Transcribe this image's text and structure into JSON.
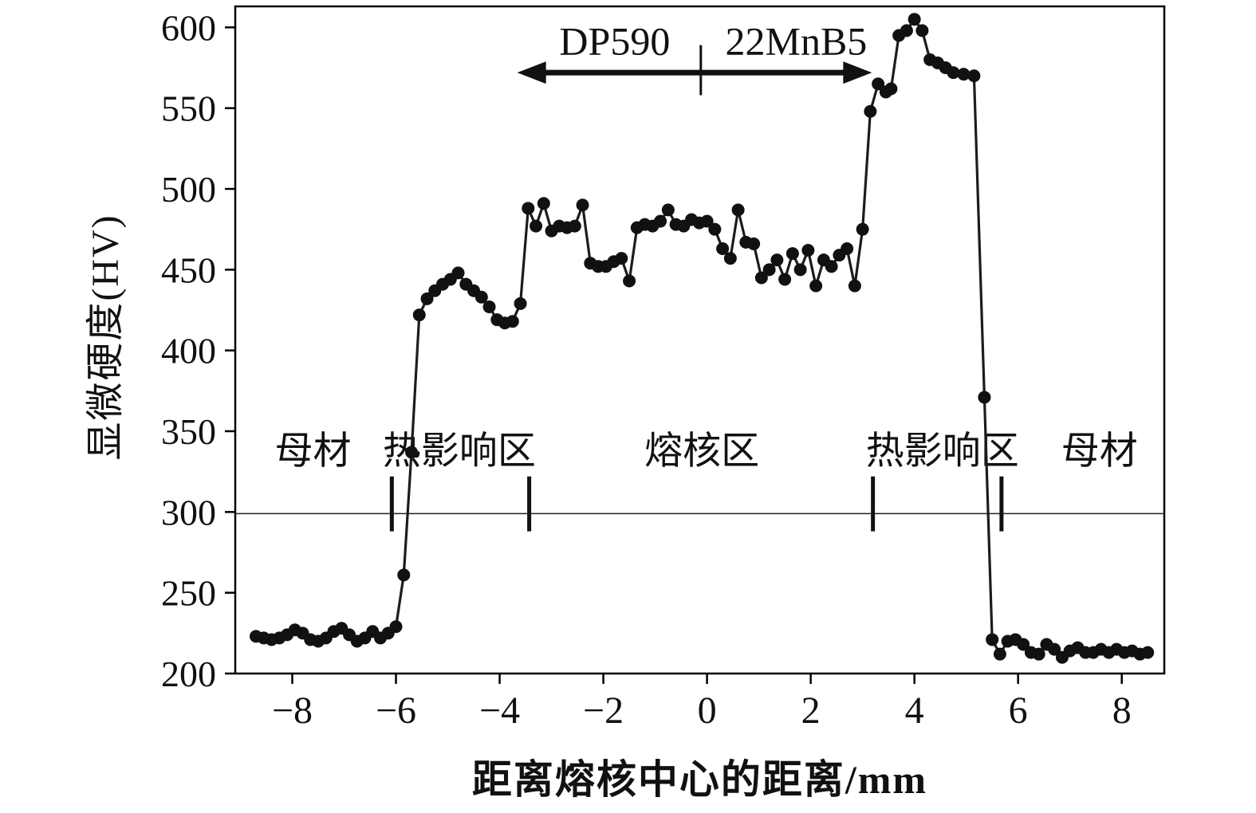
{
  "chart_data": {
    "type": "line",
    "title": "",
    "xlabel": "距离熔核中心的距离/mm",
    "ylabel": "显微硬度(HV)",
    "xlim": [
      -9.1,
      8.82
    ],
    "ylim": [
      200,
      613
    ],
    "xticks": [
      -8,
      -6,
      -4,
      -2,
      0,
      2,
      4,
      6,
      8
    ],
    "xtick_labels": [
      "−8",
      "−6",
      "−4",
      "−2",
      "0",
      "2",
      "4",
      "6",
      "8"
    ],
    "yticks": [
      200,
      250,
      300,
      350,
      400,
      450,
      500,
      550,
      600
    ],
    "ytick_labels": [
      "200",
      "250",
      "300",
      "350",
      "400",
      "450",
      "500",
      "550",
      "600"
    ],
    "grid": false,
    "legend": "none",
    "colors": {
      "line": "#1c1c1c",
      "marker": "#111111",
      "axis": "#000000"
    },
    "series": [
      {
        "name": "microhardness-profile",
        "points": [
          [
            -8.7,
            223
          ],
          [
            -8.55,
            222
          ],
          [
            -8.4,
            221
          ],
          [
            -8.25,
            222
          ],
          [
            -8.1,
            224
          ],
          [
            -7.95,
            227
          ],
          [
            -7.8,
            225
          ],
          [
            -7.65,
            221
          ],
          [
            -7.5,
            220
          ],
          [
            -7.35,
            222
          ],
          [
            -7.2,
            226
          ],
          [
            -7.05,
            228
          ],
          [
            -6.9,
            224
          ],
          [
            -6.75,
            220
          ],
          [
            -6.6,
            222
          ],
          [
            -6.45,
            226
          ],
          [
            -6.3,
            222
          ],
          [
            -6.15,
            225
          ],
          [
            -6.0,
            229
          ],
          [
            -5.85,
            261
          ],
          [
            -5.7,
            337
          ],
          [
            -5.55,
            422
          ],
          [
            -5.4,
            432
          ],
          [
            -5.25,
            437
          ],
          [
            -5.1,
            441
          ],
          [
            -4.95,
            444
          ],
          [
            -4.8,
            448
          ],
          [
            -4.65,
            441
          ],
          [
            -4.5,
            437
          ],
          [
            -4.35,
            433
          ],
          [
            -4.2,
            427
          ],
          [
            -4.05,
            419
          ],
          [
            -3.9,
            417
          ],
          [
            -3.75,
            418
          ],
          [
            -3.6,
            429
          ],
          [
            -3.45,
            488
          ],
          [
            -3.3,
            477
          ],
          [
            -3.15,
            491
          ],
          [
            -3.0,
            474
          ],
          [
            -2.85,
            477
          ],
          [
            -2.7,
            476
          ],
          [
            -2.55,
            477
          ],
          [
            -2.4,
            490
          ],
          [
            -2.25,
            454
          ],
          [
            -2.1,
            452
          ],
          [
            -1.95,
            452
          ],
          [
            -1.8,
            455
          ],
          [
            -1.65,
            457
          ],
          [
            -1.5,
            443
          ],
          [
            -1.35,
            476
          ],
          [
            -1.2,
            478
          ],
          [
            -1.05,
            477
          ],
          [
            -0.9,
            480
          ],
          [
            -0.75,
            487
          ],
          [
            -0.6,
            478
          ],
          [
            -0.45,
            477
          ],
          [
            -0.3,
            481
          ],
          [
            -0.15,
            479
          ],
          [
            0.0,
            480
          ],
          [
            0.15,
            475
          ],
          [
            0.3,
            463
          ],
          [
            0.45,
            457
          ],
          [
            0.6,
            487
          ],
          [
            0.75,
            467
          ],
          [
            0.9,
            466
          ],
          [
            1.05,
            445
          ],
          [
            1.2,
            450
          ],
          [
            1.35,
            456
          ],
          [
            1.5,
            444
          ],
          [
            1.65,
            460
          ],
          [
            1.8,
            450
          ],
          [
            1.95,
            462
          ],
          [
            2.1,
            440
          ],
          [
            2.25,
            456
          ],
          [
            2.4,
            452
          ],
          [
            2.55,
            459
          ],
          [
            2.7,
            463
          ],
          [
            2.85,
            440
          ],
          [
            3.0,
            475
          ],
          [
            3.15,
            548
          ],
          [
            3.3,
            565
          ],
          [
            3.45,
            560
          ],
          [
            3.55,
            562
          ],
          [
            3.7,
            595
          ],
          [
            3.85,
            598
          ],
          [
            4.0,
            605
          ],
          [
            4.15,
            598
          ],
          [
            4.3,
            580
          ],
          [
            4.45,
            578
          ],
          [
            4.6,
            575
          ],
          [
            4.75,
            572
          ],
          [
            4.95,
            571
          ],
          [
            5.15,
            570
          ],
          [
            5.35,
            371
          ],
          [
            5.5,
            221
          ],
          [
            5.65,
            212
          ],
          [
            5.8,
            220
          ],
          [
            5.95,
            221
          ],
          [
            6.1,
            218
          ],
          [
            6.25,
            213
          ],
          [
            6.4,
            212
          ],
          [
            6.55,
            218
          ],
          [
            6.7,
            215
          ],
          [
            6.85,
            210
          ],
          [
            7.0,
            214
          ],
          [
            7.15,
            216
          ],
          [
            7.3,
            213
          ],
          [
            7.45,
            213
          ],
          [
            7.6,
            215
          ],
          [
            7.75,
            213
          ],
          [
            7.9,
            215
          ],
          [
            8.05,
            213
          ],
          [
            8.2,
            214
          ],
          [
            8.35,
            212
          ],
          [
            8.5,
            213
          ]
        ]
      }
    ],
    "annotations": {
      "zone_labels": [
        {
          "text": "母材",
          "x": -7.6,
          "y": 338
        },
        {
          "text": "热影响区",
          "x": -4.78,
          "y": 338
        },
        {
          "text": "熔核区",
          "x": -0.1,
          "y": 338
        },
        {
          "text": "热影响区",
          "x": 4.54,
          "y": 338
        },
        {
          "text": "母材",
          "x": 7.57,
          "y": 338
        }
      ],
      "zone_boundary_line": {
        "y": 299
      },
      "zone_boundary_ticks": [
        -6.08,
        -3.43,
        3.2,
        5.68
      ],
      "material_arrow": {
        "y": 572,
        "x_start": -3.66,
        "x_end": 3.18,
        "divider_x": -0.12,
        "labels": [
          {
            "text": "DP590",
            "x": -1.78,
            "y": 591
          },
          {
            "text": "22MnB5",
            "x": 1.72,
            "y": 591
          }
        ]
      }
    }
  }
}
